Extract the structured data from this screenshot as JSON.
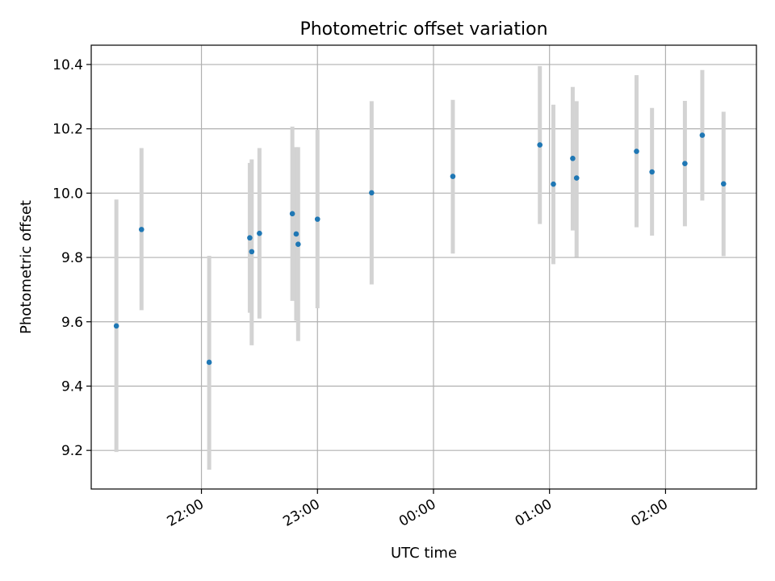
{
  "chart_data": {
    "type": "scatter",
    "title": "Photometric offset variation",
    "xlabel": "UTC time",
    "ylabel": "Photometric offset",
    "ylim": [
      9.08,
      10.46
    ],
    "xlim": [
      "21:03",
      "02:47"
    ],
    "grid": true,
    "x_ticks": [
      "22:00",
      "23:00",
      "00:00",
      "01:00",
      "02:00"
    ],
    "y_ticks": [
      "9.2",
      "9.4",
      "9.6",
      "9.8",
      "10.0",
      "10.2",
      "10.4"
    ],
    "colors": {
      "point": "#1f77b4",
      "errorbar": "#d3d3d3",
      "grid": "#b0b0b0"
    },
    "points": [
      {
        "x": "21:16",
        "y": 9.587,
        "ylo": 9.195,
        "yhi": 9.98
      },
      {
        "x": "21:29",
        "y": 9.887,
        "ylo": 9.636,
        "yhi": 10.14
      },
      {
        "x": "22:04",
        "y": 9.474,
        "ylo": 9.14,
        "yhi": 9.805
      },
      {
        "x": "22:25",
        "y": 9.861,
        "ylo": 9.628,
        "yhi": 10.094
      },
      {
        "x": "22:26",
        "y": 9.818,
        "ylo": 9.527,
        "yhi": 10.105
      },
      {
        "x": "22:30",
        "y": 9.875,
        "ylo": 9.61,
        "yhi": 10.14
      },
      {
        "x": "22:47",
        "y": 9.936,
        "ylo": 9.665,
        "yhi": 10.207
      },
      {
        "x": "22:49",
        "y": 9.873,
        "ylo": 9.603,
        "yhi": 10.143
      },
      {
        "x": "22:50",
        "y": 9.841,
        "ylo": 9.54,
        "yhi": 10.143
      },
      {
        "x": "23:00",
        "y": 9.919,
        "ylo": 9.642,
        "yhi": 10.197
      },
      {
        "x": "23:28",
        "y": 10.001,
        "ylo": 9.716,
        "yhi": 10.286
      },
      {
        "x": "00:10",
        "y": 10.052,
        "ylo": 9.812,
        "yhi": 10.29
      },
      {
        "x": "00:55",
        "y": 10.15,
        "ylo": 9.904,
        "yhi": 10.395
      },
      {
        "x": "01:02",
        "y": 10.028,
        "ylo": 9.779,
        "yhi": 10.275
      },
      {
        "x": "01:12",
        "y": 10.108,
        "ylo": 9.884,
        "yhi": 10.33
      },
      {
        "x": "01:14",
        "y": 10.047,
        "ylo": 9.801,
        "yhi": 10.286
      },
      {
        "x": "01:45",
        "y": 10.13,
        "ylo": 9.894,
        "yhi": 10.367
      },
      {
        "x": "01:53",
        "y": 10.066,
        "ylo": 9.868,
        "yhi": 10.265
      },
      {
        "x": "02:10",
        "y": 10.092,
        "ylo": 9.897,
        "yhi": 10.287
      },
      {
        "x": "02:19",
        "y": 10.18,
        "ylo": 9.977,
        "yhi": 10.383
      },
      {
        "x": "02:30",
        "y": 10.029,
        "ylo": 9.804,
        "yhi": 10.253
      }
    ]
  }
}
